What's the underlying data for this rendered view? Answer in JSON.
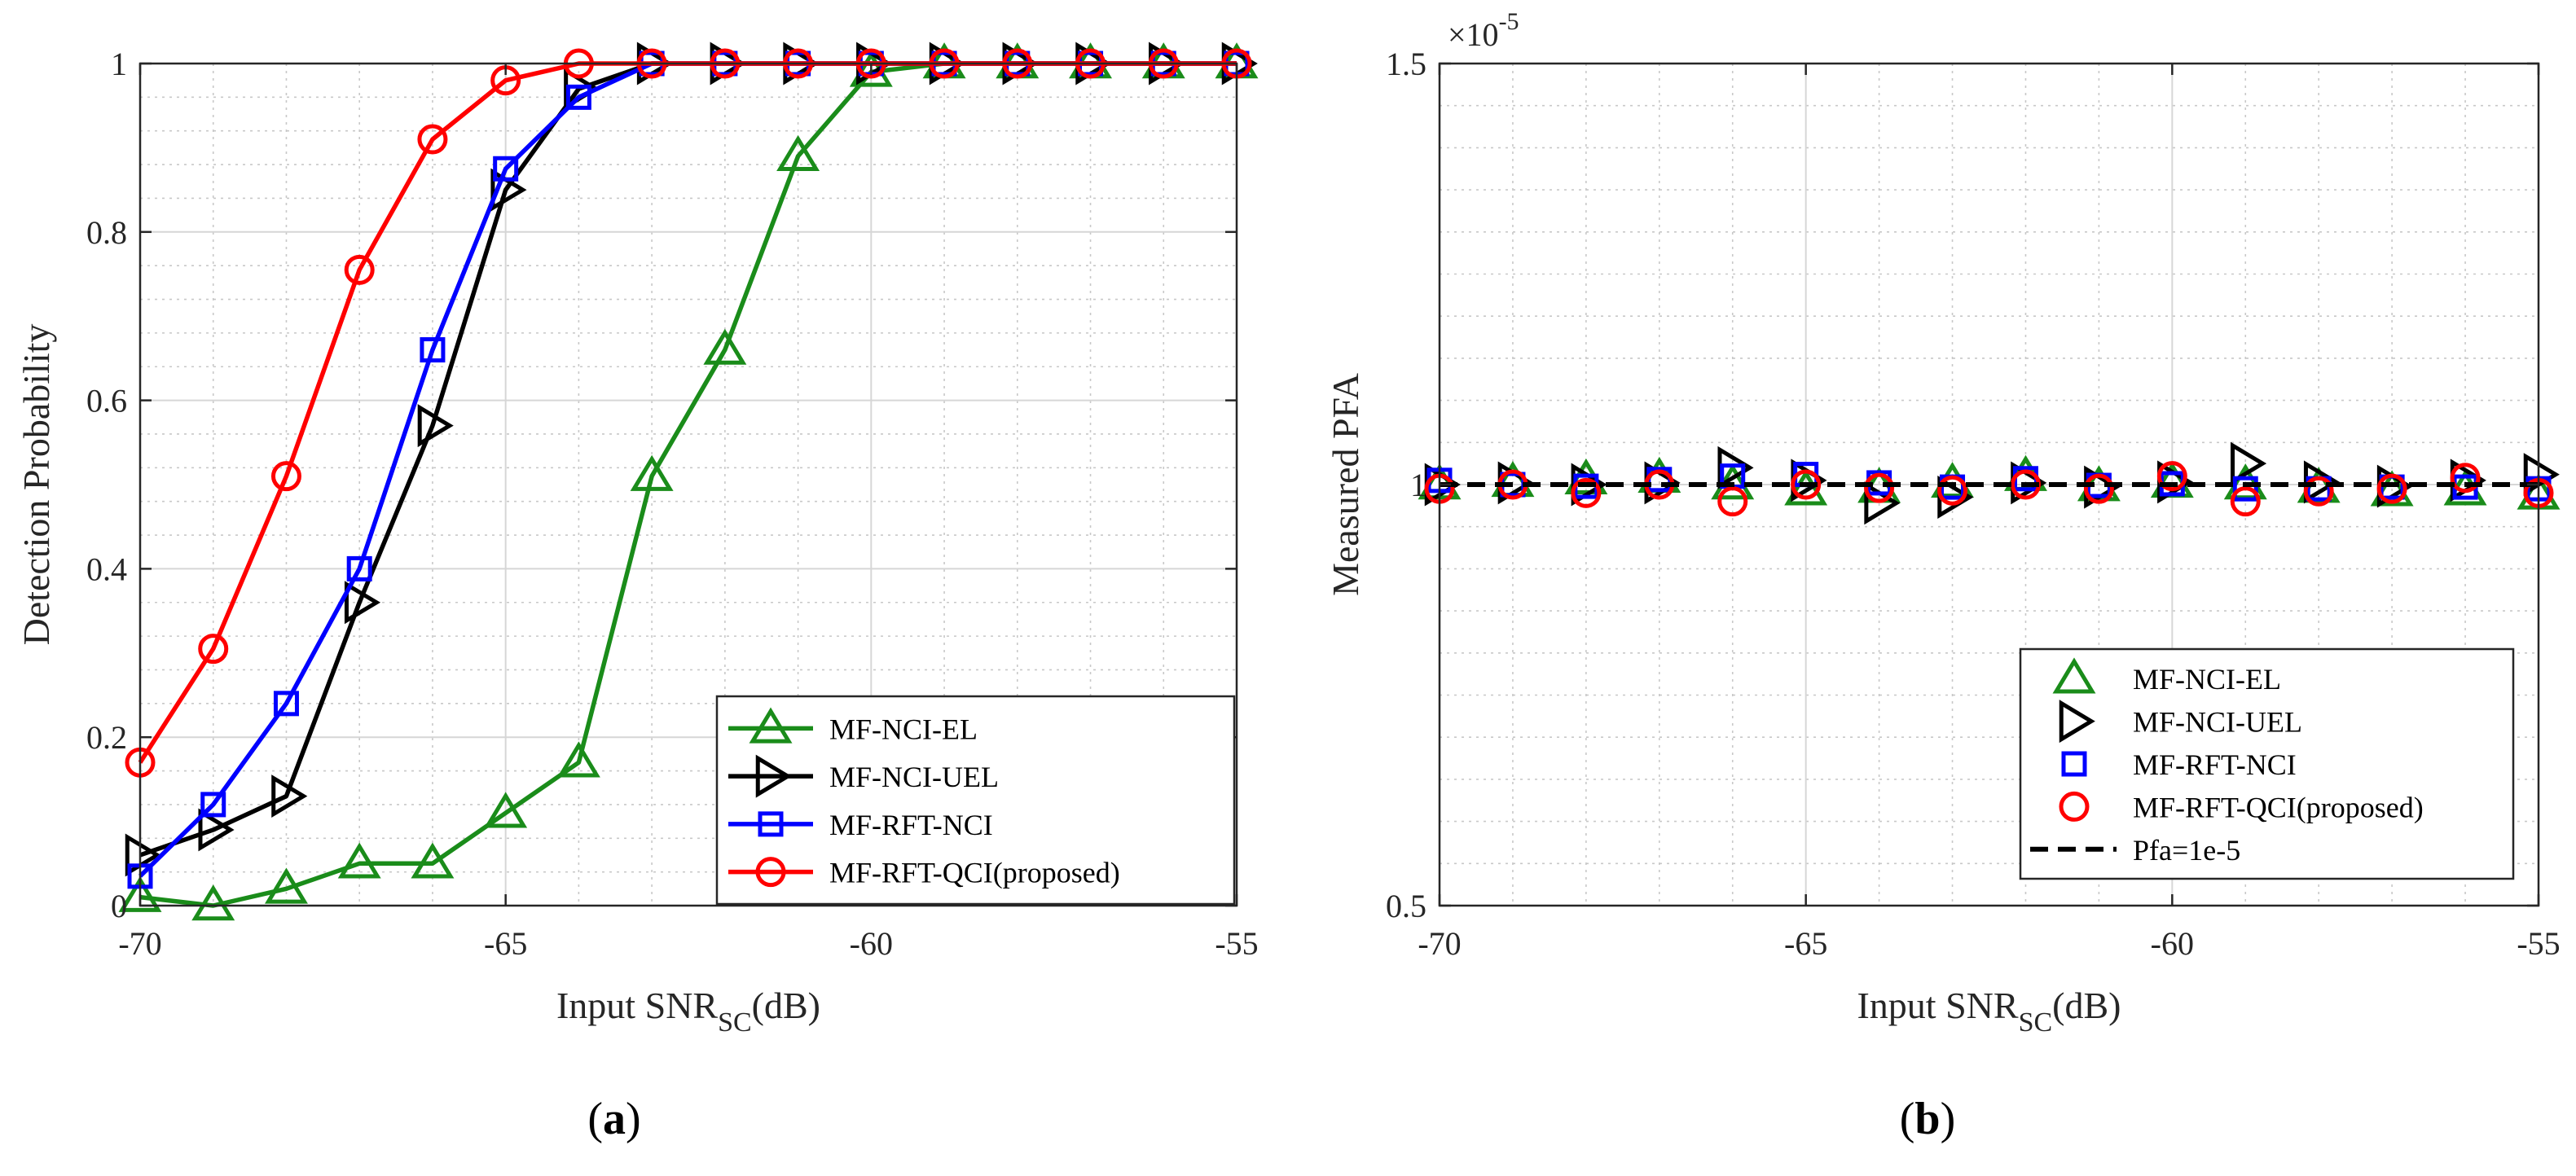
{
  "figure_labels": {
    "a_open": "(",
    "a_letter": "a",
    "a_close": ")",
    "b_open": "(",
    "b_letter": "b",
    "b_close": ")"
  },
  "colors": {
    "MF-NCI-EL": "#1a8c1a",
    "MF-NCI-UEL": "#000000",
    "MF-RFT-NCI": "#0000ff",
    "MF-RFT-QCI(proposed)": "#ff0000",
    "Pfa=1e-5": "#000000"
  },
  "chart_data": [
    {
      "type": "line",
      "id": "a",
      "title": "",
      "xlabel_main": "Input SNR",
      "xlabel_sub": "SC",
      "xlabel_tail": "(dB)",
      "ylabel": "Detection Probability",
      "xlim": [
        -70,
        -55
      ],
      "ylim": [
        0,
        1
      ],
      "xticks": [
        -70,
        -65,
        -60,
        -55
      ],
      "xtick_labels": [
        "-70",
        "-65",
        "-60",
        "-55"
      ],
      "yticks": [
        0,
        0.2,
        0.4,
        0.6,
        0.8,
        1
      ],
      "ytick_labels": [
        "0",
        "0.2",
        "0.4",
        "0.6",
        "0.8",
        "1"
      ],
      "grid": true,
      "legend_position": "bottom-right",
      "series": [
        {
          "name": "MF-NCI-EL",
          "marker": "triangle-up",
          "x": [
            -70,
            -69,
            -68,
            -67,
            -66,
            -65,
            -64,
            -63,
            -62,
            -61,
            -60,
            -59,
            -58,
            -57,
            -56,
            -55
          ],
          "y": [
            0.01,
            0.0,
            0.02,
            0.05,
            0.05,
            0.11,
            0.17,
            0.51,
            0.66,
            0.89,
            0.99,
            1.0,
            1.0,
            1.0,
            1.0,
            1.0
          ]
        },
        {
          "name": "MF-NCI-UEL",
          "marker": "triangle-right",
          "x": [
            -70,
            -69,
            -68,
            -67,
            -66,
            -65,
            -64,
            -63,
            -62,
            -61,
            -60,
            -59,
            -58,
            -57,
            -56,
            -55
          ],
          "y": [
            0.06,
            0.09,
            0.13,
            0.36,
            0.57,
            0.85,
            0.97,
            1.0,
            1.0,
            1.0,
            1.0,
            1.0,
            1.0,
            1.0,
            1.0,
            1.0
          ]
        },
        {
          "name": "MF-RFT-NCI",
          "marker": "square",
          "x": [
            -70,
            -69,
            -68,
            -67,
            -66,
            -65,
            -64,
            -63,
            -62,
            -61,
            -60,
            -59,
            -58,
            -57,
            -56,
            -55
          ],
          "y": [
            0.035,
            0.12,
            0.24,
            0.4,
            0.66,
            0.875,
            0.96,
            1.0,
            1.0,
            1.0,
            1.0,
            1.0,
            1.0,
            1.0,
            1.0,
            1.0
          ]
        },
        {
          "name": "MF-RFT-QCI(proposed)",
          "marker": "circle",
          "x": [
            -70,
            -69,
            -68,
            -67,
            -66,
            -65,
            -64,
            -63,
            -62,
            -61,
            -60,
            -59,
            -58,
            -57,
            -56,
            -55
          ],
          "y": [
            0.17,
            0.305,
            0.51,
            0.755,
            0.91,
            0.98,
            1.0,
            1.0,
            1.0,
            1.0,
            1.0,
            1.0,
            1.0,
            1.0,
            1.0,
            1.0
          ]
        }
      ]
    },
    {
      "type": "scatter",
      "id": "b",
      "title": "",
      "xlabel_main": "Input SNR",
      "xlabel_sub": "SC",
      "xlabel_tail": "(dB)",
      "ylabel": "Measured PFA",
      "exponent_base": "×10",
      "exponent_power": "-5",
      "xlim": [
        -70,
        -55
      ],
      "ylim": [
        0.5,
        1.5
      ],
      "xticks": [
        -70,
        -65,
        -60,
        -55
      ],
      "xtick_labels": [
        "-70",
        "-65",
        "-60",
        "-55"
      ],
      "yticks": [
        0.5,
        1,
        1.5
      ],
      "ytick_labels": [
        "0.5",
        "1",
        "1.5"
      ],
      "grid": true,
      "legend_position": "bottom-right",
      "series": [
        {
          "name": "MF-NCI-EL",
          "marker": "triangle-up",
          "x": [
            -70,
            -69,
            -68,
            -67,
            -66,
            -65,
            -64,
            -63,
            -62,
            -61,
            -60,
            -59,
            -58,
            -57,
            -56,
            -55
          ],
          "y": [
            1.0,
            1.003,
            1.006,
            1.008,
            1.0,
            0.993,
            0.996,
            1.002,
            1.01,
            0.998,
            1.002,
            1.0,
            0.996,
            0.992,
            0.993,
            0.988
          ]
        },
        {
          "name": "MF-NCI-UEL",
          "marker": "triangle-right",
          "x": [
            -70,
            -69,
            -68,
            -67,
            -66,
            -65,
            -64,
            -63,
            -62,
            -61,
            -60,
            -59,
            -58,
            -57,
            -56,
            -55
          ],
          "y": [
            1.0,
            1.002,
            1.0,
            1.002,
            1.02,
            1.005,
            0.978,
            0.985,
            1.002,
            0.997,
            1.003,
            1.025,
            1.003,
            0.998,
            1.005,
            1.012
          ]
        },
        {
          "name": "MF-RFT-NCI",
          "marker": "square",
          "x": [
            -70,
            -69,
            -68,
            -67,
            -66,
            -65,
            -64,
            -63,
            -62,
            -61,
            -60,
            -59,
            -58,
            -57,
            -56,
            -55
          ],
          "y": [
            1.005,
            1.0,
            0.998,
            1.006,
            1.01,
            1.012,
            1.002,
            0.997,
            1.007,
            0.999,
            1.001,
            0.995,
            0.995,
            0.997,
            0.997,
            0.995
          ]
        },
        {
          "name": "MF-RFT-QCI(proposed)",
          "marker": "circle",
          "x": [
            -70,
            -69,
            -68,
            -67,
            -66,
            -65,
            -64,
            -63,
            -62,
            -61,
            -60,
            -59,
            -58,
            -57,
            -56,
            -55
          ],
          "y": [
            0.995,
            1.0,
            0.99,
            1.0,
            0.98,
            1.0,
            0.996,
            0.993,
            1.0,
            0.995,
            1.01,
            0.98,
            0.992,
            0.995,
            1.008,
            0.99
          ]
        },
        {
          "name": "Pfa=1e-5",
          "marker": "dashed-line",
          "x": [
            -70,
            -55
          ],
          "y": [
            1.0,
            1.0
          ]
        }
      ]
    }
  ]
}
